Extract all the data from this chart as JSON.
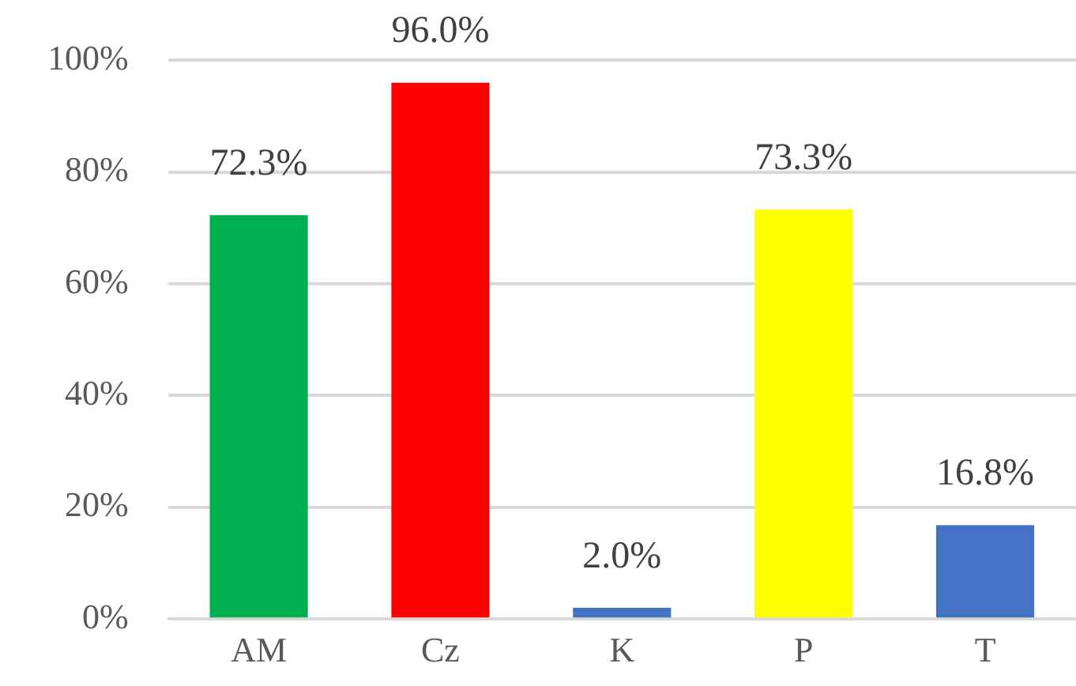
{
  "chart_data": {
    "type": "bar",
    "categories": [
      "AM",
      "Cz",
      "K",
      "P",
      "T"
    ],
    "values": [
      72.3,
      96.0,
      2.0,
      73.3,
      16.8
    ],
    "colors": [
      "#00b050",
      "#ff0000",
      "#4472c4",
      "#ffff00",
      "#4472c4"
    ],
    "value_labels": [
      "72.3%",
      "96.0%",
      "2.0%",
      "73.3%",
      "16.8%"
    ],
    "ylim": [
      0,
      100
    ],
    "yticks": [
      {
        "value": 0,
        "label": "0%"
      },
      {
        "value": 20,
        "label": "20%"
      },
      {
        "value": 40,
        "label": "40%"
      },
      {
        "value": 60,
        "label": "60%"
      },
      {
        "value": 80,
        "label": "80%"
      },
      {
        "value": 100,
        "label": "100%"
      }
    ],
    "grid": "y",
    "legend": false
  }
}
